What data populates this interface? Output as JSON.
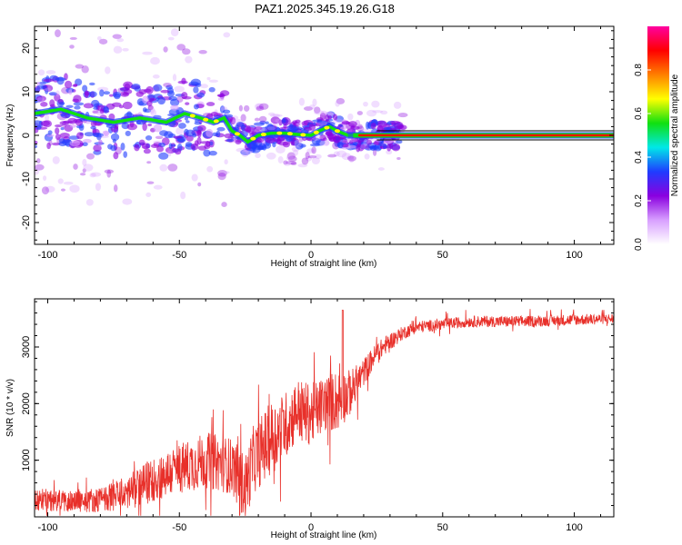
{
  "title": "PAZ1.2025.345.19.26.G18",
  "colors": {
    "snr_line": "#e8302a",
    "frame": "#000000"
  },
  "chart_data": [
    {
      "type": "heatmap",
      "name": "spectrogram",
      "xlabel": "Height of straight line (km)",
      "ylabel": "Frequency (Hz)",
      "xlim": [
        -105,
        115
      ],
      "ylim": [
        -25,
        25
      ],
      "xticks": [
        -100,
        -50,
        0,
        50,
        100
      ],
      "yticks": [
        -20,
        -10,
        0,
        10,
        20
      ],
      "ridge_x": [
        -105,
        -95,
        -85,
        -75,
        -65,
        -55,
        -48,
        -42,
        -37,
        -33,
        -30,
        -27,
        -24,
        -20,
        -15,
        -10,
        -5,
        0,
        3,
        7,
        10,
        14,
        20,
        30,
        115
      ],
      "ridge_y": [
        5,
        6,
        4,
        3,
        4,
        3,
        5,
        4,
        3,
        4,
        1,
        0,
        -1.5,
        0,
        0.5,
        0.5,
        0.2,
        0,
        1,
        2,
        1,
        0,
        0,
        0,
        0
      ],
      "scatter_spread_hz": 8,
      "colorbar": {
        "label": "Normalized spectral amplitude",
        "range": [
          0,
          1
        ],
        "ticks": [
          "0.0",
          "0.2",
          "0.4",
          "0.6",
          "0.8"
        ],
        "colors": [
          "#ffffff",
          "#d8a0ff",
          "#8a00e0",
          "#1f3cff",
          "#00e8e8",
          "#10e010",
          "#ffff00",
          "#ff7f00",
          "#ff0000",
          "#ff00a0"
        ]
      }
    },
    {
      "type": "line",
      "name": "snr",
      "xlabel": "Height of straight line (km)",
      "ylabel": "SNR (10 * v/v)",
      "xlim": [
        -105,
        115
      ],
      "ylim": [
        0,
        3850
      ],
      "xticks": [
        -100,
        -50,
        0,
        50,
        100
      ],
      "yticks": [
        1000,
        2000,
        3000
      ],
      "trend_x": [
        -105,
        -90,
        -80,
        -70,
        -60,
        -50,
        -40,
        -30,
        -25,
        -22,
        -15,
        -10,
        -5,
        0,
        5,
        10,
        15,
        20,
        25,
        30,
        35,
        40,
        50,
        60,
        80,
        100,
        115
      ],
      "trend_y": [
        300,
        280,
        300,
        420,
        650,
        850,
        1000,
        900,
        500,
        1000,
        1400,
        1600,
        1900,
        1800,
        2000,
        2050,
        2200,
        2550,
        2900,
        3100,
        3250,
        3350,
        3400,
        3450,
        3450,
        3480,
        3500
      ],
      "noise_amplitude": [
        200,
        200,
        220,
        300,
        400,
        450,
        500,
        500,
        600,
        600,
        650,
        600,
        550,
        550,
        500,
        550,
        400,
        250,
        180,
        150,
        120,
        110,
        100,
        100,
        100,
        100,
        90
      ],
      "spike_x": [
        12
      ],
      "spike_y": [
        3650
      ]
    }
  ]
}
